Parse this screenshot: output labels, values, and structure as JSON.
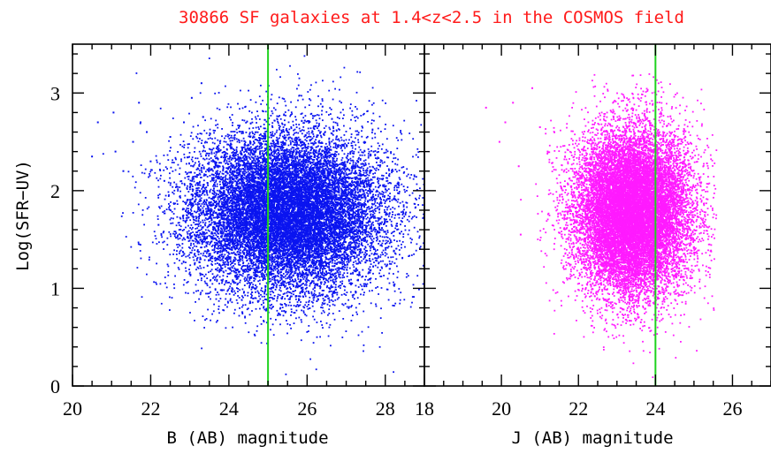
{
  "figure": {
    "title": "30866 SF galaxies at 1.4<z<2.5 in the COSMOS field",
    "ylabel": "Log(SFR−UV)"
  },
  "chart_data": [
    {
      "type": "scatter",
      "panel": "left",
      "xlabel": "B (AB) magnitude",
      "ylabel": "Log(SFR−UV)",
      "xlim": [
        20,
        29
      ],
      "ylim": [
        0,
        3.5
      ],
      "x_ticks": [
        20,
        22,
        24,
        26,
        28
      ],
      "y_ticks": [
        0,
        1,
        2,
        3
      ],
      "point_color": "#0a14f0",
      "cutoff_line": {
        "x": 25,
        "color": "#1fd21f"
      },
      "density_model": {
        "x_center": 25.5,
        "x_sigma": 1.25,
        "x_range": [
          20.5,
          29
        ],
        "y_center": 1.78,
        "y_sigma": 0.42,
        "y_range": [
          0,
          3.4
        ],
        "n_points": 15433
      },
      "outlier_points": [
        [
          20.5,
          2.35
        ],
        [
          20.65,
          2.7
        ],
        [
          21.05,
          2.8
        ],
        [
          21.1,
          2.4
        ],
        [
          21.3,
          2.2
        ],
        [
          21.55,
          2.5
        ],
        [
          21.7,
          2.9
        ],
        [
          21.9,
          2.6
        ],
        [
          22.0,
          2.3
        ],
        [
          22.2,
          1.65
        ],
        [
          22.35,
          2.1
        ],
        [
          22.5,
          2.55
        ],
        [
          22.85,
          2.7
        ],
        [
          23.05,
          2.95
        ],
        [
          23.3,
          3.1
        ]
      ]
    },
    {
      "type": "scatter",
      "panel": "right",
      "xlabel": "J (AB)  magnitude",
      "ylabel": "",
      "xlim": [
        18,
        27
      ],
      "ylim": [
        0,
        3.5
      ],
      "x_ticks": [
        18,
        20,
        22,
        24,
        26
      ],
      "y_ticks": [
        0,
        1,
        2,
        3
      ],
      "point_color": "#ff1aff",
      "cutoff_line": {
        "x": 24,
        "color": "#1fd21f"
      },
      "density_model": {
        "x_center": 23.4,
        "x_sigma": 0.75,
        "x_range": [
          20.5,
          25.6
        ],
        "y_center": 1.78,
        "y_sigma": 0.42,
        "y_range": [
          0,
          3.2
        ],
        "n_points": 15433
      },
      "outlier_points": [
        [
          19.6,
          2.85
        ],
        [
          19.95,
          2.5
        ],
        [
          20.1,
          2.7
        ],
        [
          20.3,
          2.9
        ],
        [
          20.45,
          2.25
        ],
        [
          20.5,
          1.55
        ],
        [
          20.8,
          3.05
        ],
        [
          21.0,
          2.65
        ],
        [
          21.2,
          2.4
        ]
      ]
    }
  ]
}
